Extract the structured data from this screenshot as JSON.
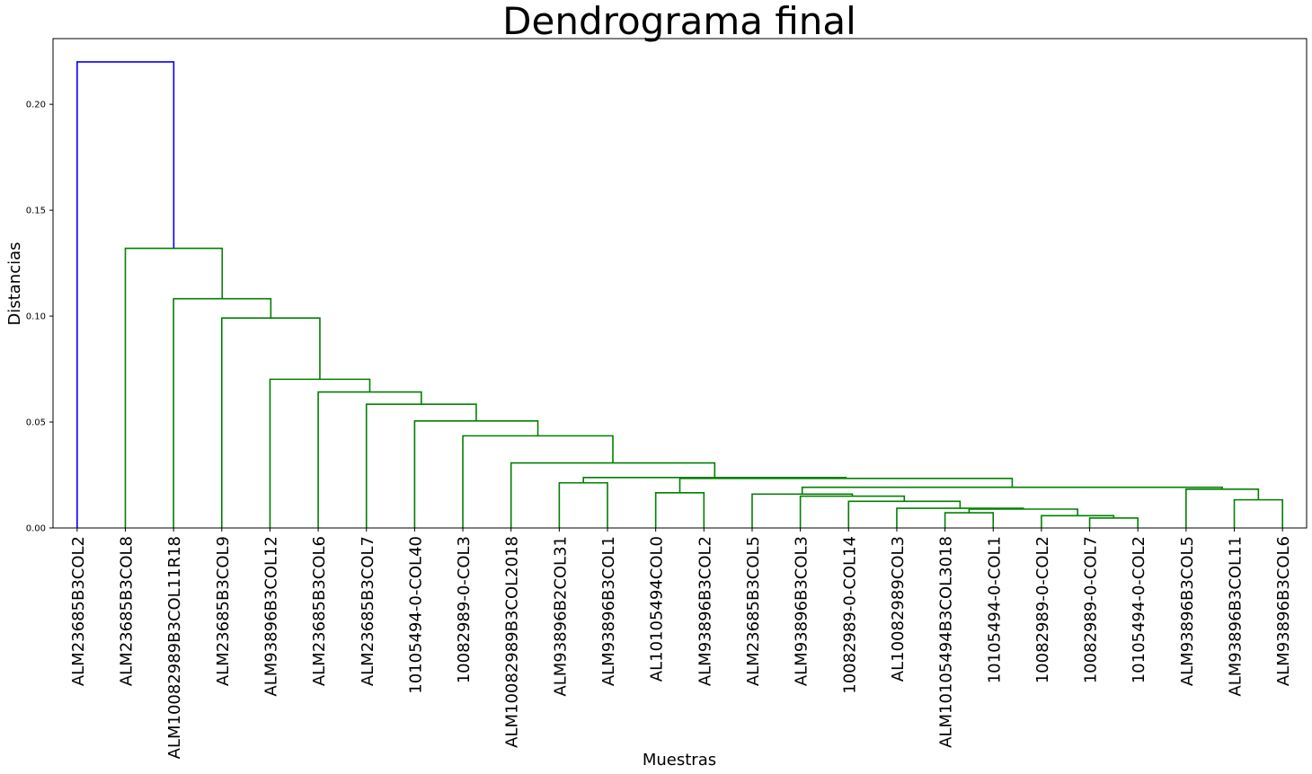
{
  "chart_data": {
    "type": "dendrogram",
    "title": "Dendrograma final",
    "xlabel": "Muestras",
    "ylabel": "Distancias",
    "ylim": [
      0,
      0.231
    ],
    "yticks": [
      0.0,
      0.05,
      0.1,
      0.15,
      0.2
    ],
    "ytick_labels": [
      "0.00",
      "0.05",
      "0.10",
      "0.15",
      "0.20"
    ],
    "grid": false,
    "colors": {
      "above_threshold": "#0000ff",
      "cluster": "#008000",
      "axes": "#000000"
    },
    "leaves": [
      "ALM23685B3COL2",
      "ALM23685B3COL8",
      "ALM10082989B3COL11R18",
      "ALM23685B3COL9",
      "ALM93896B3COL12",
      "ALM23685B3COL6",
      "ALM23685B3COL7",
      "10105494-0-COL40",
      "10082989-0-COL3",
      "ALM10082989B3COL2018",
      "ALM93896B2COL31",
      "ALM93896B3COL1",
      "AL10105494COL0",
      "ALM93896B3COL2",
      "ALM23685B3COL5",
      "ALM93896B3COL3",
      "10082989-0-COL14",
      "AL10082989COL3",
      "ALM10105494B3COL3018",
      "10105494-0-COL1",
      "10082989-0-COL2",
      "10082989-0-COL7",
      "10105494-0-COL2",
      "ALM93896B3COL5",
      "ALM93896B3COL11",
      "ALM93896B3COL6"
    ],
    "links": [
      {
        "left": 21,
        "right": 22,
        "height": 0.0047,
        "color": "cluster"
      },
      {
        "left": 20,
        "right": 26,
        "height": 0.0058,
        "color": "cluster"
      },
      {
        "left": 18,
        "right": 19,
        "height": 0.0072,
        "color": "cluster"
      },
      {
        "left": 27,
        "right": 28,
        "height": 0.0089,
        "color": "cluster"
      },
      {
        "left": 17,
        "right": 29,
        "height": 0.0093,
        "color": "cluster"
      },
      {
        "left": 16,
        "right": 30,
        "height": 0.0126,
        "color": "cluster"
      },
      {
        "left": 24,
        "right": 25,
        "height": 0.0133,
        "color": "cluster"
      },
      {
        "left": 15,
        "right": 31,
        "height": 0.015,
        "color": "cluster"
      },
      {
        "left": 14,
        "right": 33,
        "height": 0.016,
        "color": "cluster"
      },
      {
        "left": 12,
        "right": 13,
        "height": 0.0166,
        "color": "cluster"
      },
      {
        "left": 23,
        "right": 32,
        "height": 0.0183,
        "color": "cluster"
      },
      {
        "left": 34,
        "right": 36,
        "height": 0.0192,
        "color": "cluster"
      },
      {
        "left": 10,
        "right": 11,
        "height": 0.0213,
        "color": "cluster"
      },
      {
        "left": 35,
        "right": 37,
        "height": 0.0234,
        "color": "cluster"
      },
      {
        "left": 38,
        "right": 39,
        "height": 0.0238,
        "color": "cluster"
      },
      {
        "left": 9,
        "right": 40,
        "height": 0.0307,
        "color": "cluster"
      },
      {
        "left": 8,
        "right": 41,
        "height": 0.0435,
        "color": "cluster"
      },
      {
        "left": 7,
        "right": 42,
        "height": 0.0505,
        "color": "cluster"
      },
      {
        "left": 6,
        "right": 43,
        "height": 0.0584,
        "color": "cluster"
      },
      {
        "left": 5,
        "right": 44,
        "height": 0.0642,
        "color": "cluster"
      },
      {
        "left": 4,
        "right": 45,
        "height": 0.0702,
        "color": "cluster"
      },
      {
        "left": 3,
        "right": 46,
        "height": 0.0991,
        "color": "cluster"
      },
      {
        "left": 2,
        "right": 47,
        "height": 0.1082,
        "color": "cluster"
      },
      {
        "left": 1,
        "right": 48,
        "height": 0.132,
        "color": "cluster"
      },
      {
        "left": 0,
        "right": 49,
        "height": 0.22,
        "color": "above_threshold"
      }
    ]
  }
}
